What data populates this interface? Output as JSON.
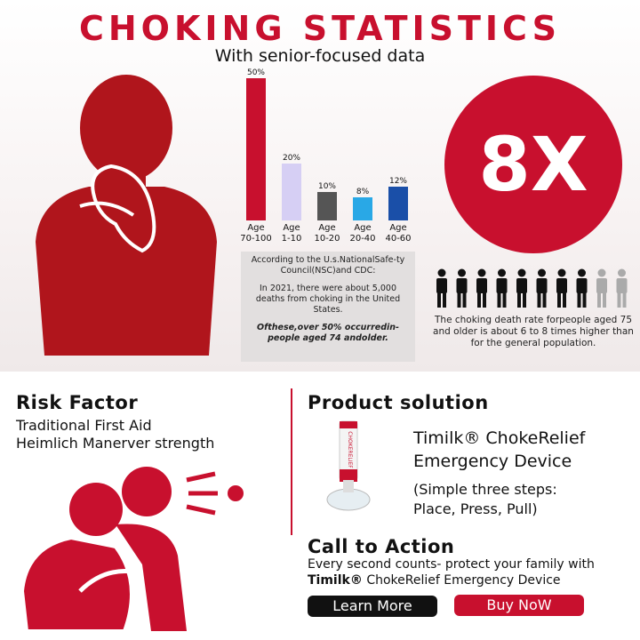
{
  "header": {
    "title": "CHOKING STATISTICS",
    "subtitle": "With senior-focused data"
  },
  "chart_data": {
    "type": "bar",
    "categories": [
      "Age 70-100",
      "Age 1-10",
      "Age 10-20",
      "Age 20-40",
      "Age 40-60"
    ],
    "values": [
      50,
      20,
      10,
      8,
      12
    ],
    "value_labels": [
      "50%",
      "20%",
      "10%",
      "8%",
      "12%"
    ],
    "colors": [
      "#c8102e",
      "#d6cff4",
      "#555555",
      "#29a8e6",
      "#1a4fa8"
    ]
  },
  "source_note": {
    "intro": "According to the U.s.NationalSafe-ty Council(NSC)and CDC:",
    "body": "In 2021, there were about 5,000 deaths from choking in the United States.",
    "highlight": "Ofthese,over 50% occurredin-people aged 74 andolder."
  },
  "stat": {
    "value": "8X",
    "text": "The choking death rate forpeople aged 75 and older is about 6 to 8 times higher than for the general population."
  },
  "risk": {
    "title": "Risk Factor",
    "lines": [
      "Traditional First Aid",
      "Heimlich Manerver strength"
    ]
  },
  "product": {
    "section": "Product solution",
    "name": "Timilk® ChokeRelief Emergency Device",
    "steps": "(Simple three steps: Place, Press, Pull)",
    "device_label": "CHOKERELIEF"
  },
  "cta": {
    "title": "Call to Action",
    "text_before": "Every second counts- protect your family with",
    "brand": "Timilk®",
    "text_after": "ChokeRelief Emergency Device",
    "buttons": [
      "Learn More",
      "Buy NoW"
    ]
  }
}
